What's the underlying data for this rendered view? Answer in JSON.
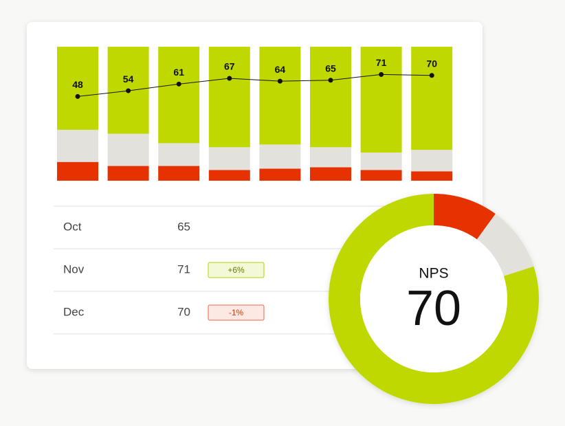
{
  "chart_data": [
    {
      "type": "bar",
      "stacked": true,
      "ylim": [
        0,
        100
      ],
      "y2lim": [
        -40,
        100
      ],
      "series": [
        {
          "color": "#e63200",
          "values": [
            14,
            11,
            11,
            8,
            9,
            10,
            8,
            7
          ]
        },
        {
          "color": "#e2e1dc",
          "values": [
            24,
            24,
            17,
            17,
            18,
            15,
            13,
            16
          ]
        },
        {
          "color": "#bfd900",
          "values": [
            62,
            65,
            72,
            75,
            73,
            75,
            79,
            77
          ]
        },
        {
          "type": "line",
          "axis": "y2",
          "color": "#111111",
          "values": [
            48,
            54,
            61,
            67,
            64,
            65,
            71,
            70
          ]
        }
      ]
    },
    {
      "type": "pie",
      "donut": true,
      "title": "NPS",
      "value": 70,
      "series": [
        {
          "color": "#e63200",
          "values": [
            10
          ]
        },
        {
          "color": "#e2e1dc",
          "values": [
            10
          ]
        },
        {
          "color": "#bfd900",
          "values": [
            80
          ]
        }
      ]
    }
  ],
  "table": {
    "rows": [
      {
        "month": "Oct",
        "value": 65
      },
      {
        "month": "Nov",
        "value": 71,
        "change": "+6%"
      },
      {
        "month": "Dec",
        "value": 70,
        "change": "-1%"
      }
    ]
  }
}
